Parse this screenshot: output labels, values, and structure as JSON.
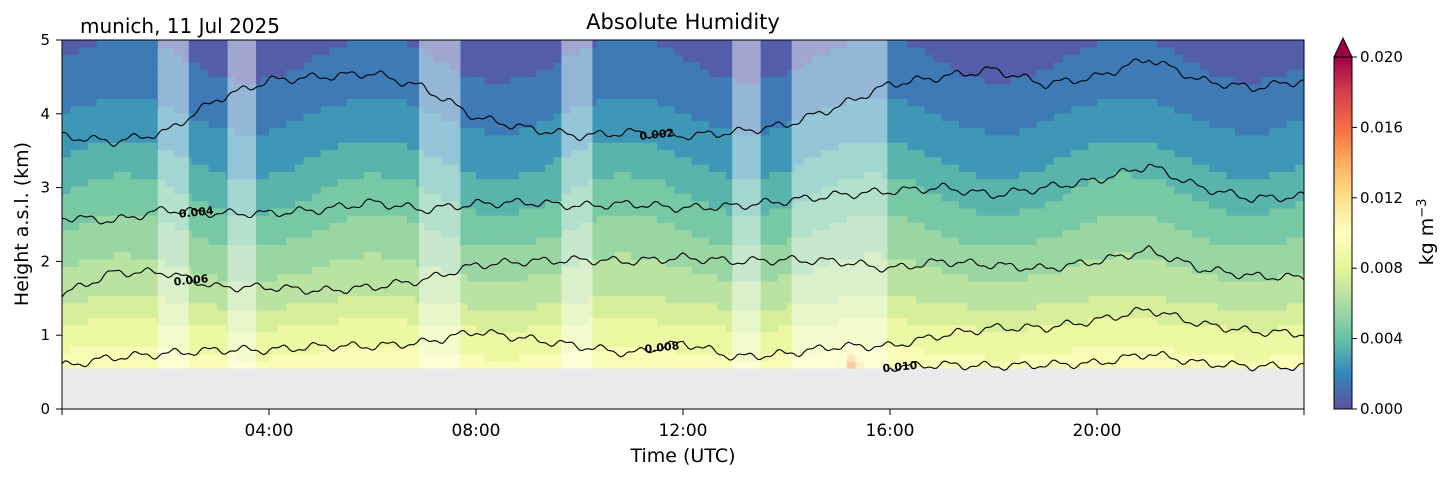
{
  "chart_data": {
    "type": "heatmap",
    "title": "Absolute Humidity",
    "site_label": "munich, 11 Jul 2025",
    "xlabel": "Time (UTC)",
    "ylabel": "Height a.s.l. (km)",
    "colorbar_label": "kg m",
    "colorbar_label_exponent": "−3",
    "xlim_hours": [
      0,
      24
    ],
    "ylim_km": [
      0,
      5
    ],
    "x_ticks": [
      {
        "hour": 4,
        "label": "04:00"
      },
      {
        "hour": 8,
        "label": "08:00"
      },
      {
        "hour": 12,
        "label": "12:00"
      },
      {
        "hour": 16,
        "label": "16:00"
      },
      {
        "hour": 20,
        "label": "20:00"
      }
    ],
    "y_ticks": [
      0,
      1,
      2,
      3,
      4,
      5
    ],
    "colorbar_ticks": [
      "0.000",
      "0.004",
      "0.008",
      "0.012",
      "0.016",
      "0.020"
    ],
    "colorbar_range": [
      0,
      0.02
    ],
    "colorbar_extend": "max",
    "colormap": [
      "#5e4fa2",
      "#3288bd",
      "#66c2a5",
      "#abdda4",
      "#e6f598",
      "#ffffbf",
      "#fee08b",
      "#fdae61",
      "#f46d43",
      "#d53e4f",
      "#9e0142"
    ],
    "missing_data_color": "#ebebeb",
    "ground_height_km": 0.55,
    "contour_levels": [
      {
        "value": 0.002,
        "label": "0.002",
        "label_hour": 11.5
      },
      {
        "value": 0.004,
        "label": "0.004",
        "label_hour": 2.6
      },
      {
        "value": 0.006,
        "label": "0.006",
        "label_hour": 2.5
      },
      {
        "value": 0.008,
        "label": "0.008",
        "label_hour": 11.6
      },
      {
        "value": 0.01,
        "label": "0.010",
        "label_hour": 16.2
      }
    ],
    "contour_series": [
      {
        "level": 0.002,
        "hours": [
          0,
          1,
          2,
          3,
          4,
          5,
          6,
          7,
          8,
          9,
          10,
          11,
          12,
          13,
          14,
          15,
          16,
          17,
          18,
          19,
          20,
          21,
          22,
          23,
          24
        ],
        "heights_km": [
          3.7,
          3.62,
          3.75,
          4.2,
          4.45,
          4.5,
          4.55,
          4.35,
          3.95,
          3.8,
          3.7,
          3.75,
          3.7,
          3.75,
          3.85,
          4.1,
          4.4,
          4.5,
          4.6,
          4.4,
          4.5,
          4.75,
          4.45,
          4.35,
          4.45
        ]
      },
      {
        "level": 0.004,
        "hours": [
          0,
          1,
          2,
          3,
          4,
          5,
          6,
          7,
          8,
          9,
          10,
          11,
          12,
          13,
          14,
          15,
          16,
          17,
          18,
          19,
          20,
          21,
          22,
          23,
          24
        ],
        "heights_km": [
          2.6,
          2.55,
          2.7,
          2.65,
          2.65,
          2.7,
          2.8,
          2.7,
          2.78,
          2.8,
          2.75,
          2.78,
          2.72,
          2.75,
          2.82,
          2.9,
          2.95,
          3.0,
          2.9,
          3.0,
          3.1,
          3.3,
          3.0,
          2.85,
          2.88
        ]
      },
      {
        "level": 0.006,
        "hours": [
          0,
          1,
          2,
          3,
          4,
          5,
          6,
          7,
          8,
          9,
          10,
          11,
          12,
          13,
          14,
          15,
          16,
          17,
          18,
          19,
          20,
          21,
          22,
          23,
          24
        ],
        "heights_km": [
          1.55,
          1.85,
          1.85,
          1.65,
          1.65,
          1.6,
          1.65,
          1.75,
          1.95,
          2.0,
          2.02,
          2.0,
          2.05,
          2.0,
          2.02,
          2.0,
          1.9,
          2.0,
          1.95,
          1.9,
          2.0,
          2.15,
          1.9,
          1.8,
          1.78
        ]
      },
      {
        "level": 0.008,
        "hours": [
          0,
          1,
          2,
          3,
          4,
          5,
          6,
          7,
          8,
          9,
          10,
          11,
          12,
          13,
          14,
          15,
          16,
          17,
          18,
          19,
          20,
          21,
          22,
          23,
          24
        ],
        "heights_km": [
          0.58,
          0.7,
          0.75,
          0.8,
          0.8,
          0.85,
          0.85,
          0.9,
          1.05,
          0.95,
          0.85,
          0.75,
          0.9,
          0.7,
          0.75,
          0.85,
          0.85,
          1.0,
          1.1,
          1.1,
          1.2,
          1.35,
          1.15,
          1.05,
          1.02
        ]
      },
      {
        "level": 0.01,
        "hours": [
          16,
          17,
          18,
          19,
          20,
          21,
          22,
          23,
          24
        ],
        "heights_km": [
          0.57,
          0.6,
          0.58,
          0.6,
          0.62,
          0.75,
          0.62,
          0.58,
          0.57
        ]
      }
    ],
    "field_profile": {
      "height_km": [
        0.55,
        1.0,
        1.5,
        2.0,
        2.5,
        3.0,
        3.5,
        4.0,
        4.5,
        5.0
      ],
      "value": [
        0.0095,
        0.0085,
        0.0068,
        0.0058,
        0.0048,
        0.0038,
        0.0028,
        0.002,
        0.0012,
        0.0008
      ]
    },
    "precip_event": {
      "center_hour": 15.3,
      "peak_value": 0.017
    },
    "masked_periods_hours": [
      [
        1.85,
        2.45
      ],
      [
        3.2,
        3.75
      ],
      [
        6.9,
        7.7
      ],
      [
        9.65,
        10.25
      ],
      [
        12.95,
        13.5
      ],
      [
        14.1,
        15.95
      ]
    ]
  }
}
